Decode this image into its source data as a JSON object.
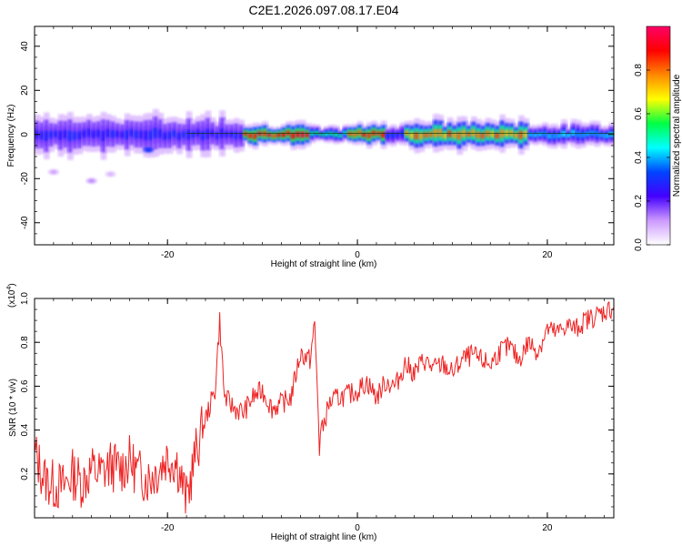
{
  "title": "C2E1.2026.097.08.17.E04",
  "chart_data": [
    {
      "type": "heatmap",
      "title": "C2E1.2026.097.08.17.E04",
      "xlabel": "Height of straight line (km)",
      "ylabel": "Frequency (Hz)",
      "xlim": [
        -34,
        27
      ],
      "ylim": [
        -50,
        49
      ],
      "xticks": [
        -20,
        0,
        20
      ],
      "yticks": [
        -40,
        -20,
        0,
        20,
        40
      ],
      "colorbar": {
        "label": "Normalized spectral amplitude",
        "range": [
          0,
          1
        ],
        "ticks": [
          0.0,
          0.2,
          0.4,
          0.6,
          0.8
        ],
        "tick_labels": [
          "0.0",
          "0.2",
          "0.4",
          "0.6",
          "0.8"
        ],
        "colors": [
          "#ffffff",
          "#cc99ff",
          "#4400ff",
          "#0044ff",
          "#00ffff",
          "#00ff44",
          "#ffff00",
          "#ff8800",
          "#ff0000",
          "#ff0066"
        ]
      },
      "band": {
        "center_hz": 0,
        "segments": [
          {
            "x0": -34,
            "x1": -12,
            "intensity": 0.3,
            "halfwidth_hz": 5
          },
          {
            "x0": -12,
            "x1": -5,
            "intensity": 0.95,
            "halfwidth_hz": 3
          },
          {
            "x0": -5,
            "x1": -1,
            "intensity": 0.55,
            "halfwidth_hz": 2
          },
          {
            "x0": -1,
            "x1": 3,
            "intensity": 0.95,
            "halfwidth_hz": 3
          },
          {
            "x0": 3,
            "x1": 5,
            "intensity": 0.35,
            "halfwidth_hz": 3
          },
          {
            "x0": 5,
            "x1": 18,
            "intensity": 0.85,
            "halfwidth_hz": 4
          },
          {
            "x0": 18,
            "x1": 27,
            "intensity": 0.45,
            "halfwidth_hz": 3
          }
        ],
        "side_blobs": [
          {
            "x": -32,
            "f": -17,
            "intensity": 0.1
          },
          {
            "x": -28,
            "f": -21,
            "intensity": 0.12
          },
          {
            "x": -26,
            "f": -18,
            "intensity": 0.08
          },
          {
            "x": -22,
            "f": -7,
            "intensity": 0.3
          }
        ]
      }
    },
    {
      "type": "line",
      "xlabel": "Height of straight line (km)",
      "ylabel": "SNR (10 * v/v)",
      "y_multiplier_label": "(x10",
      "y_multiplier_exp": "4",
      "y_multiplier_close": ")",
      "xlim": [
        -34,
        27
      ],
      "ylim": [
        0.0,
        1.0
      ],
      "xticks": [
        -20,
        0,
        20
      ],
      "yticks": [
        0.2,
        0.4,
        0.6,
        0.8,
        1.0
      ],
      "ytick_labels": [
        "0.2",
        "0.4",
        "0.6",
        "0.8",
        "1.0"
      ],
      "series": [
        {
          "name": "SNR",
          "color": "#ee2222",
          "x": [
            -34,
            -33,
            -32,
            -31,
            -30,
            -29,
            -28,
            -27,
            -26,
            -25,
            -24,
            -23,
            -22,
            -21,
            -20,
            -19,
            -18,
            -17,
            -16,
            -15,
            -14.5,
            -14,
            -13,
            -12,
            -11,
            -10,
            -9,
            -8,
            -7,
            -6,
            -5,
            -4.5,
            -4,
            -3,
            -2,
            -1,
            0,
            1,
            2,
            3,
            4,
            5,
            6,
            7,
            8,
            9,
            10,
            11,
            12,
            13,
            14,
            15,
            16,
            17,
            18,
            19,
            20,
            21,
            22,
            23,
            24,
            25,
            26,
            27
          ],
          "values": [
            0.3,
            0.18,
            0.15,
            0.14,
            0.2,
            0.16,
            0.22,
            0.2,
            0.24,
            0.22,
            0.26,
            0.2,
            0.18,
            0.22,
            0.28,
            0.25,
            0.08,
            0.3,
            0.45,
            0.58,
            0.9,
            0.55,
            0.5,
            0.48,
            0.55,
            0.58,
            0.5,
            0.52,
            0.55,
            0.75,
            0.72,
            0.88,
            0.35,
            0.52,
            0.55,
            0.56,
            0.58,
            0.62,
            0.55,
            0.62,
            0.6,
            0.7,
            0.66,
            0.72,
            0.68,
            0.7,
            0.66,
            0.72,
            0.74,
            0.72,
            0.7,
            0.76,
            0.78,
            0.72,
            0.8,
            0.76,
            0.86,
            0.84,
            0.88,
            0.86,
            0.9,
            0.92,
            0.94,
            0.96
          ]
        }
      ]
    }
  ]
}
